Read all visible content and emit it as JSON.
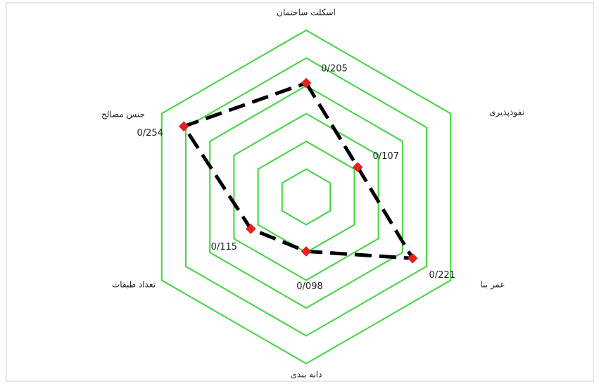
{
  "chart_data": {
    "type": "radar",
    "categories": [
      "اسکلت ساختمان",
      "نفوذپذیری",
      "عمر بنا",
      "دانه بندی",
      "تعداد طبقات",
      "جنس مصالح"
    ],
    "values": [
      0.205,
      0.107,
      0.221,
      0.098,
      0.115,
      0.254
    ],
    "value_labels": [
      "0/205",
      "0/107",
      "0/221",
      "0/098",
      "0/115",
      "0/254"
    ],
    "ylim": [
      0,
      0.3
    ],
    "yticks": [
      0.05,
      0.1,
      0.15,
      0.2,
      0.25,
      0.3
    ],
    "grid": true,
    "grid_color": "#3ed63e",
    "line_color": "#000000",
    "marker_color": "#e8201c"
  }
}
